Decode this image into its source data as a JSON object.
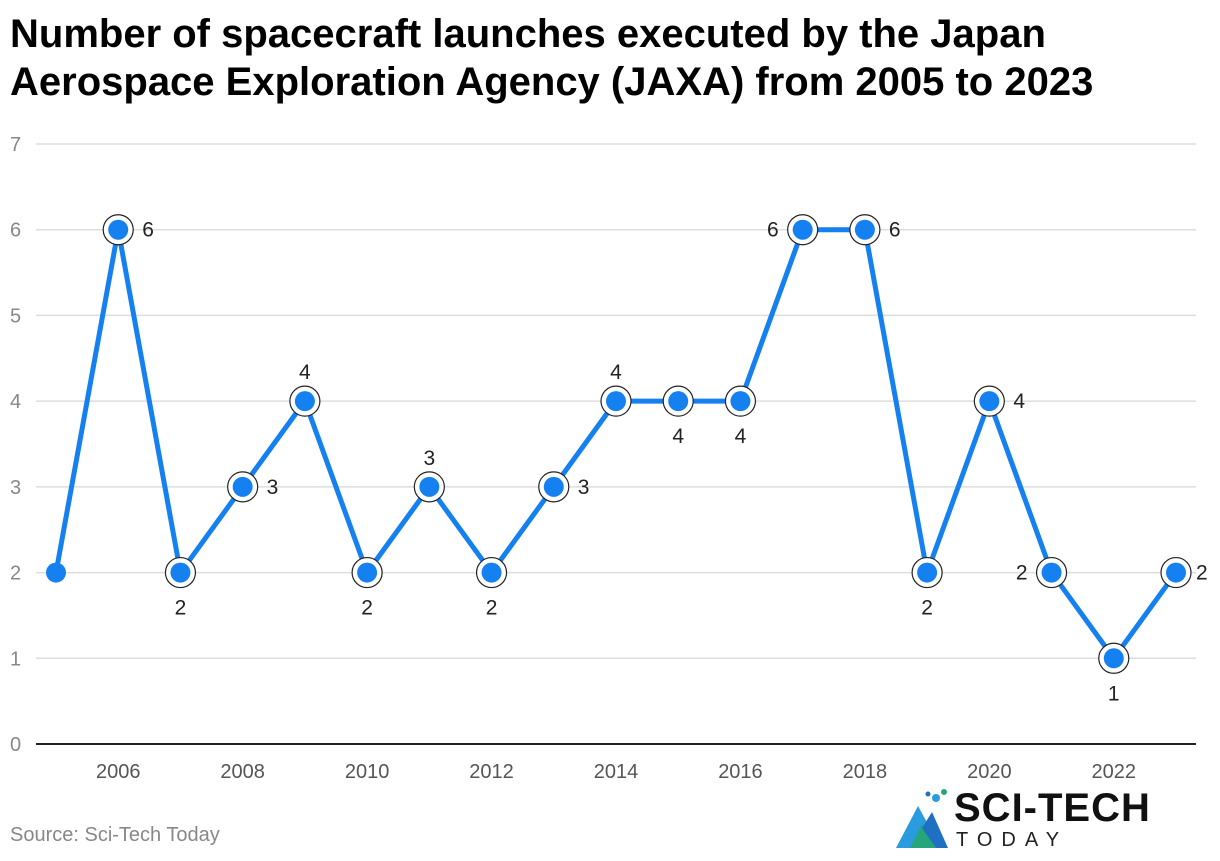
{
  "title": "Number of spacecraft launches executed by the Japan Aerospace Exploration Agency (JAXA) from 2005 to 2023",
  "source": "Source: Sci-Tech Today",
  "logo": {
    "main": "SCI-TECH",
    "sub": "TODAY"
  },
  "colors": {
    "line": "#1580f0",
    "grid": "#dddddd",
    "axis": "#222222",
    "tick": "#888888"
  },
  "chart_data": {
    "type": "line",
    "title": "Number of spacecraft launches executed by the Japan Aerospace Exploration Agency (JAXA) from 2005 to 2023",
    "xlabel": "",
    "ylabel": "",
    "ylim": [
      0,
      7
    ],
    "yticks": [
      0,
      1,
      2,
      3,
      4,
      5,
      6,
      7
    ],
    "xticks": [
      2006,
      2008,
      2010,
      2012,
      2014,
      2016,
      2018,
      2020,
      2022
    ],
    "grid": true,
    "series": [
      {
        "x": [
          2005,
          2006,
          2007,
          2008,
          2009,
          2010,
          2011,
          2012,
          2013,
          2014,
          2015,
          2016,
          2017,
          2018,
          2019,
          2020,
          2021,
          2022,
          2023
        ],
        "values": [
          2,
          6,
          2,
          3,
          4,
          2,
          3,
          2,
          3,
          4,
          4,
          4,
          6,
          6,
          2,
          4,
          2,
          1,
          2
        ]
      }
    ]
  }
}
